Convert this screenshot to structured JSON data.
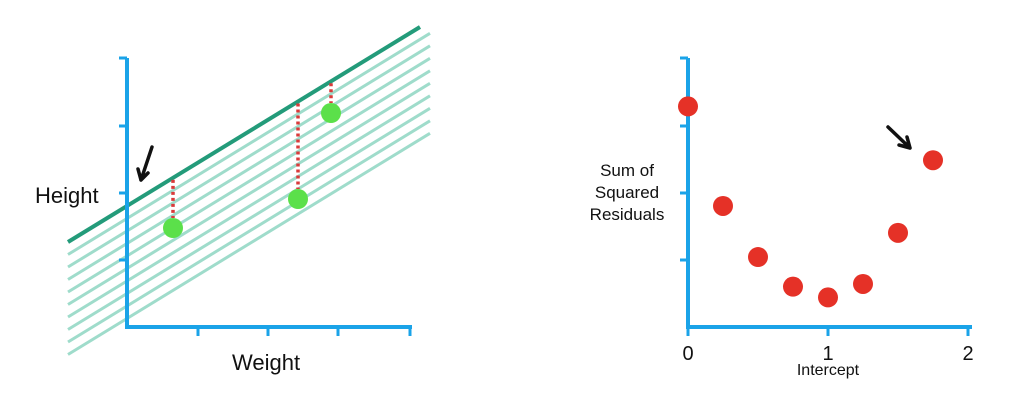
{
  "colors": {
    "axis": "#1aa3e8",
    "best_line": "#239b7a",
    "shifted_lines": "#9fdccb",
    "data_points": "#5be04a",
    "residuals": "#d93a3a",
    "ssr_points": "#e53127",
    "arrow": "#111111"
  },
  "left_panel": {
    "ylabel": "Height",
    "xlabel": "Weight",
    "icons": [
      "arrow-down-left-icon"
    ]
  },
  "chart_data": {
    "type": "scatter",
    "title": "",
    "xlabel": "Intercept",
    "ylabel_lines": [
      "Sum of",
      "Squared",
      "Residuals"
    ],
    "xlim": [
      0,
      2
    ],
    "ylim": [
      0,
      1
    ],
    "xticks": [
      "0",
      "1",
      "2"
    ],
    "x": [
      0,
      0.25,
      0.5,
      0.75,
      1.0,
      1.25,
      1.5,
      1.75
    ],
    "y": [
      0.82,
      0.45,
      0.26,
      0.15,
      0.11,
      0.16,
      0.35,
      0.62
    ],
    "highlighted_point_index": 7,
    "grid": false,
    "legend": "none"
  }
}
